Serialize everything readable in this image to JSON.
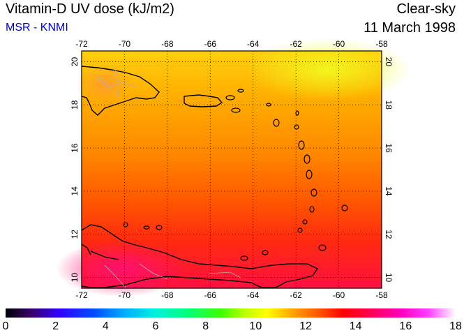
{
  "header": {
    "title": "Vitamin-D UV dose (kJ/m2)",
    "source": "MSR - KNMI",
    "condition": "Clear-sky",
    "date": "11 March 1998"
  },
  "map": {
    "lon_ticks": [
      "-72",
      "-70",
      "-68",
      "-66",
      "-64",
      "-62",
      "-60",
      "-58"
    ],
    "lat_ticks": [
      "10",
      "12",
      "14",
      "16",
      "18",
      "20"
    ],
    "lon_range": [
      -72,
      -58
    ],
    "lat_range": [
      9.5,
      20.5
    ],
    "grid": true,
    "coastline_color": "#000000",
    "border_color": "#b0b0b0"
  },
  "colorbar": {
    "labels": [
      "0",
      "2",
      "4",
      "6",
      "8",
      "10",
      "12",
      "14",
      "16",
      "18"
    ],
    "range": [
      0,
      18
    ]
  },
  "colors": {
    "source_text": "#0000cc",
    "north": "#ffd700",
    "mid": "#ff6a00",
    "south": "#ff1a1a",
    "far_south": "#ff2060"
  }
}
